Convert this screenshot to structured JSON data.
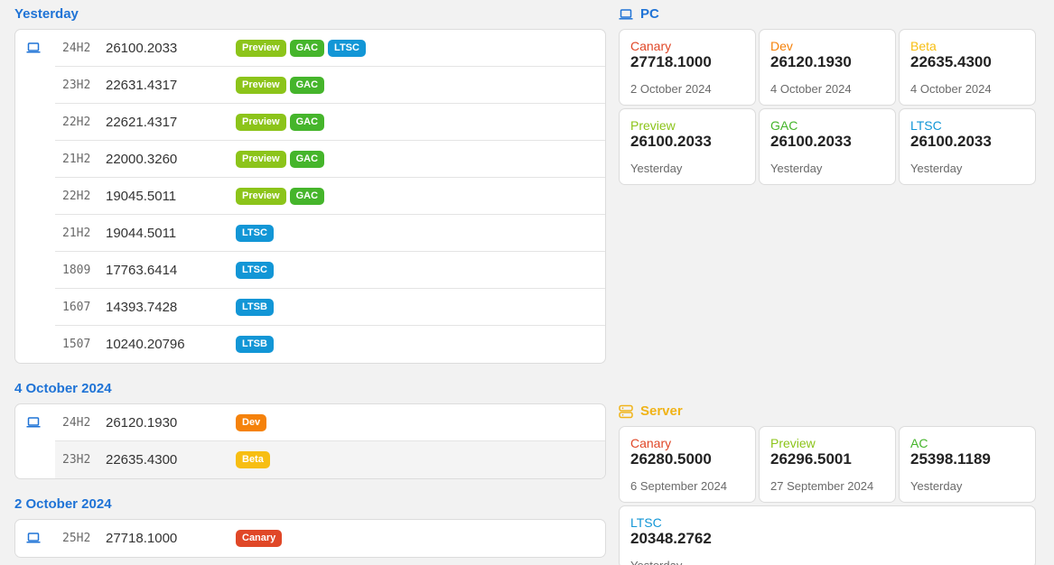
{
  "colors": {
    "Preview": "#8cc41a",
    "GAC": "#45b52b",
    "LTSC": "#1296d6",
    "LTSB": "#1296d6",
    "Dev": "#f5820b",
    "Beta": "#f7be12",
    "Canary": "#e04727",
    "AC": "#45b52b",
    "heading": "#1f73d6",
    "server_heading": "#f0b318"
  },
  "groups": [
    {
      "title": "Yesterday",
      "icon": "laptop-icon",
      "rows": [
        {
          "version": "24H2",
          "build": "26100.2033",
          "tags": [
            "Preview",
            "GAC",
            "LTSC"
          ]
        },
        {
          "version": "23H2",
          "build": "22631.4317",
          "tags": [
            "Preview",
            "GAC"
          ]
        },
        {
          "version": "22H2",
          "build": "22621.4317",
          "tags": [
            "Preview",
            "GAC"
          ]
        },
        {
          "version": "21H2",
          "build": "22000.3260",
          "tags": [
            "Preview",
            "GAC"
          ]
        },
        {
          "version": "22H2",
          "build": "19045.5011",
          "tags": [
            "Preview",
            "GAC"
          ]
        },
        {
          "version": "21H2",
          "build": "19044.5011",
          "tags": [
            "LTSC"
          ]
        },
        {
          "version": "1809",
          "build": "17763.6414",
          "tags": [
            "LTSC"
          ]
        },
        {
          "version": "1607",
          "build": "14393.7428",
          "tags": [
            "LTSB"
          ]
        },
        {
          "version": "1507",
          "build": "10240.20796",
          "tags": [
            "LTSB"
          ]
        }
      ]
    },
    {
      "title": "4 October 2024",
      "icon": "laptop-icon",
      "rows": [
        {
          "version": "24H2",
          "build": "26120.1930",
          "tags": [
            "Dev"
          ]
        },
        {
          "version": "23H2",
          "build": "22635.4300",
          "tags": [
            "Beta"
          ],
          "highlight": true
        }
      ]
    },
    {
      "title": "2 October 2024",
      "icon": "laptop-icon",
      "rows": [
        {
          "version": "25H2",
          "build": "27718.1000",
          "tags": [
            "Canary"
          ]
        }
      ]
    }
  ],
  "pc": {
    "title": "PC",
    "icon": "laptop-icon",
    "tiles": [
      {
        "channel": "Canary",
        "build": "27718.1000",
        "date": "2 October 2024"
      },
      {
        "channel": "Dev",
        "build": "26120.1930",
        "date": "4 October 2024"
      },
      {
        "channel": "Beta",
        "build": "22635.4300",
        "date": "4 October 2024"
      },
      {
        "channel": "Preview",
        "build": "26100.2033",
        "date": "Yesterday"
      },
      {
        "channel": "GAC",
        "build": "26100.2033",
        "date": "Yesterday"
      },
      {
        "channel": "LTSC",
        "build": "26100.2033",
        "date": "Yesterday"
      }
    ]
  },
  "server": {
    "title": "Server",
    "icon": "server-icon",
    "tiles": [
      {
        "channel": "Canary",
        "build": "26280.5000",
        "date": "6 September 2024"
      },
      {
        "channel": "Preview",
        "build": "26296.5001",
        "date": "27 September 2024"
      },
      {
        "channel": "AC",
        "build": "25398.1189",
        "date": "Yesterday"
      },
      {
        "channel": "LTSC",
        "build": "20348.2762",
        "date": "Yesterday"
      }
    ]
  }
}
